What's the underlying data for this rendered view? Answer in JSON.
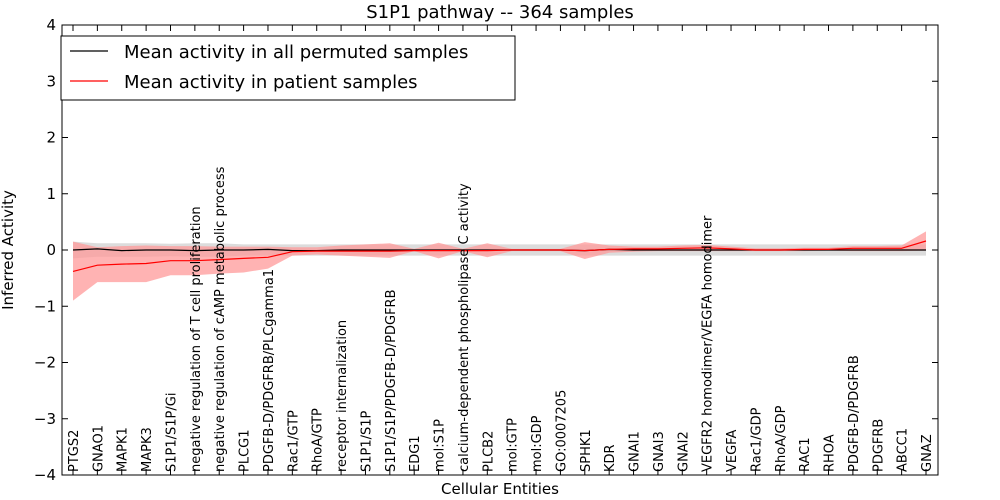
{
  "chart_data": {
    "type": "line",
    "title": "S1P1 pathway -- 364 samples",
    "xlabel": "Cellular Entities",
    "ylabel": "Inferred Activity",
    "ylim": [
      -4,
      4
    ],
    "yticks": [
      "4",
      "3",
      "2",
      "1",
      "0",
      "−1",
      "−2",
      "−3",
      "−4"
    ],
    "ytick_values": [
      4,
      3,
      2,
      1,
      0,
      -1,
      -2,
      -3,
      -4
    ],
    "legend_position": "top-left",
    "categories": [
      "PTGS2",
      "GNAO1",
      "MAPK1",
      "MAPK3",
      "S1P1/S1P/Gi",
      "negative regulation of T cell proliferation",
      "negative regulation of cAMP metabolic process",
      "PLCG1",
      "PDGFB-D/PDGFRB/PLCgamma1",
      "Rac1/GTP",
      "RhoA/GTP",
      "receptor internalization",
      "S1P1/S1P",
      "S1P1/S1P/PDGFB-D/PDGFRB",
      "EDG1",
      "mol:S1P",
      "calcium-dependent phospholipase C activity",
      "PLCB2",
      "mol:GTP",
      "mol:GDP",
      "GO:0007205",
      "SPHK1",
      "KDR",
      "GNAI1",
      "GNAI3",
      "GNAI2",
      "VEGFR2 homodimer/VEGFA homodimer",
      "VEGFA",
      "Rac1/GDP",
      "RhoA/GDP",
      "RAC1",
      "RHOA",
      "PDGFB-D/PDGFRB",
      "PDGFRB",
      "ABCC1",
      "GNAZ"
    ],
    "series": [
      {
        "name": "Mean activity in all permuted samples",
        "color": "#000000",
        "band_color": "#bfbfbf",
        "values": [
          0.0,
          0.02,
          -0.01,
          0.0,
          0.0,
          -0.01,
          0.0,
          0.0,
          0.01,
          -0.01,
          -0.01,
          0.0,
          0.0,
          0.0,
          0.0,
          0.0,
          0.0,
          0.0,
          0.0,
          0.0,
          0.0,
          -0.01,
          0.01,
          0.0,
          0.0,
          0.0,
          0.0,
          0.0,
          0.0,
          0.0,
          0.0,
          0.0,
          0.0,
          0.0,
          0.0,
          0.0
        ],
        "lower": [
          -0.15,
          -0.12,
          -0.12,
          -0.12,
          -0.11,
          -0.12,
          -0.12,
          -0.1,
          -0.1,
          -0.1,
          -0.1,
          -0.1,
          -0.1,
          -0.1,
          -0.1,
          -0.1,
          -0.1,
          -0.1,
          -0.1,
          -0.1,
          -0.1,
          -0.1,
          -0.1,
          -0.1,
          -0.1,
          -0.1,
          -0.1,
          -0.1,
          -0.1,
          -0.1,
          -0.1,
          -0.1,
          -0.1,
          -0.1,
          -0.1,
          -0.1
        ],
        "upper": [
          0.15,
          0.12,
          0.12,
          0.12,
          0.11,
          0.12,
          0.12,
          0.1,
          0.1,
          0.1,
          0.1,
          0.1,
          0.1,
          0.1,
          0.1,
          0.1,
          0.1,
          0.1,
          0.1,
          0.1,
          0.1,
          0.1,
          0.1,
          0.1,
          0.1,
          0.1,
          0.1,
          0.1,
          0.1,
          0.1,
          0.1,
          0.1,
          0.1,
          0.1,
          0.1,
          0.1
        ]
      },
      {
        "name": "Mean activity in patient samples",
        "color": "#ff0000",
        "band_color": "#ff9a9a",
        "values": [
          -0.38,
          -0.27,
          -0.25,
          -0.24,
          -0.19,
          -0.19,
          -0.17,
          -0.15,
          -0.13,
          -0.03,
          -0.02,
          -0.02,
          -0.02,
          -0.02,
          -0.01,
          -0.01,
          -0.01,
          -0.01,
          0.0,
          0.0,
          0.0,
          -0.01,
          0.01,
          0.02,
          0.02,
          0.03,
          0.04,
          0.02,
          0.0,
          0.0,
          0.01,
          0.01,
          0.03,
          0.03,
          0.03,
          0.16
        ],
        "lower": [
          -0.9,
          -0.57,
          -0.57,
          -0.57,
          -0.45,
          -0.45,
          -0.42,
          -0.4,
          -0.33,
          -0.1,
          -0.08,
          -0.1,
          -0.12,
          -0.14,
          -0.02,
          -0.15,
          -0.02,
          -0.13,
          -0.02,
          -0.02,
          -0.02,
          -0.16,
          -0.05,
          -0.03,
          -0.02,
          -0.02,
          -0.02,
          -0.02,
          -0.02,
          -0.02,
          -0.02,
          -0.01,
          -0.02,
          -0.02,
          -0.02,
          -0.01
        ],
        "upper": [
          0.15,
          0.05,
          0.07,
          0.08,
          0.07,
          0.07,
          0.06,
          0.06,
          0.06,
          0.05,
          0.05,
          0.08,
          0.1,
          0.12,
          0.02,
          0.13,
          0.02,
          0.12,
          0.02,
          0.02,
          0.02,
          0.14,
          0.08,
          0.06,
          0.06,
          0.08,
          0.09,
          0.06,
          0.03,
          0.03,
          0.04,
          0.04,
          0.07,
          0.07,
          0.08,
          0.33
        ]
      }
    ]
  }
}
